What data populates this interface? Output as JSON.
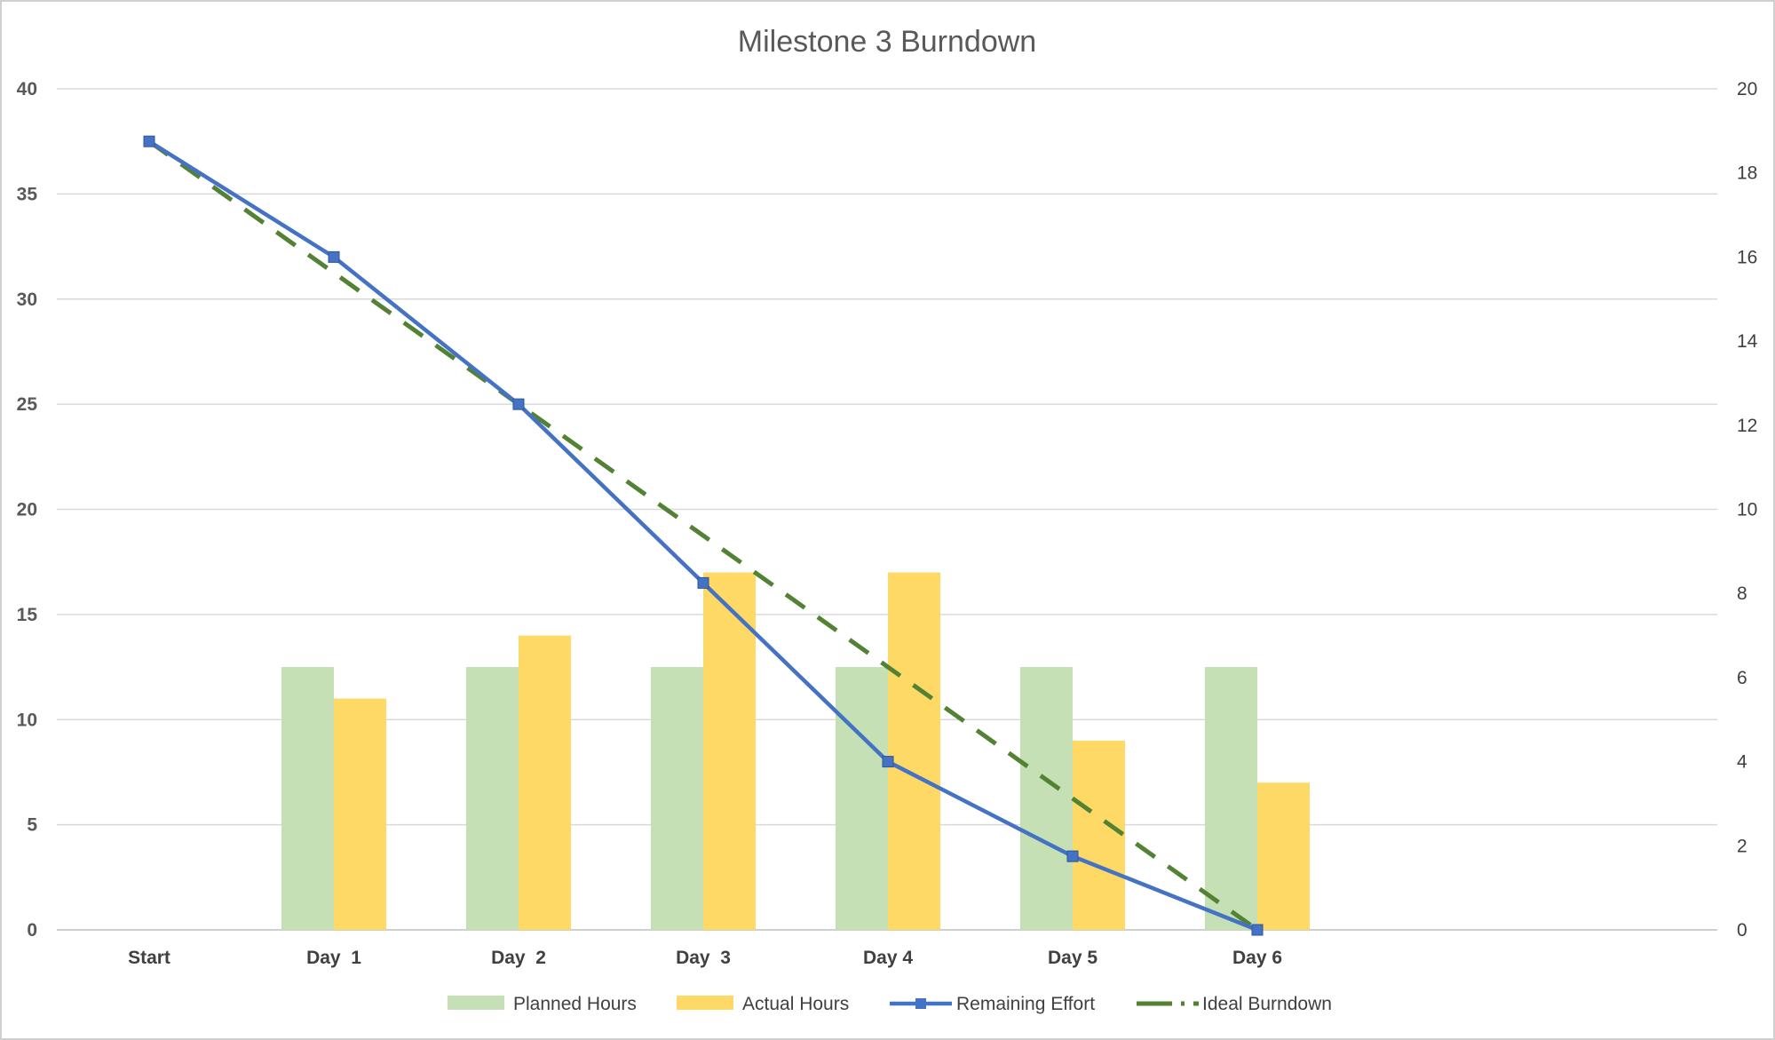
{
  "chart_data": {
    "type": "bar",
    "title": "Milestone 3 Burndown",
    "categories": [
      "Start",
      "Day  1",
      "Day  2",
      "Day  3",
      "Day 4",
      "Day 5",
      "Day 6"
    ],
    "y_left": {
      "min": 0,
      "max": 40,
      "step": 5,
      "ticks": [
        "0",
        "5",
        "10",
        "15",
        "20",
        "25",
        "30",
        "35",
        "40"
      ]
    },
    "y_right": {
      "min": 0,
      "max": 20,
      "step": 2,
      "ticks": [
        "0",
        "2",
        "4",
        "6",
        "8",
        "10",
        "12",
        "14",
        "16",
        "18",
        "20"
      ]
    },
    "gridlines": true,
    "legend_position": "bottom",
    "series": [
      {
        "name": "Planned Hours",
        "kind": "bar",
        "axis": "left",
        "color": "#c5e0b4",
        "values": [
          null,
          12.5,
          12.5,
          12.5,
          12.5,
          12.5,
          12.5
        ]
      },
      {
        "name": "Actual Hours",
        "kind": "bar",
        "axis": "left",
        "color": "#ffd966",
        "values": [
          null,
          11,
          14,
          17,
          17,
          9,
          7
        ]
      },
      {
        "name": "Remaining Effort",
        "kind": "line",
        "axis": "left",
        "color": "#4472c4",
        "marker": "square",
        "values": [
          37.5,
          32,
          25,
          16.5,
          8,
          3.5,
          0
        ]
      },
      {
        "name": "Ideal Burndown",
        "kind": "line",
        "axis": "left",
        "color": "#548235",
        "dash": "dashed",
        "values": [
          37.5,
          31.25,
          25,
          18.75,
          12.5,
          6.25,
          0
        ]
      }
    ]
  }
}
